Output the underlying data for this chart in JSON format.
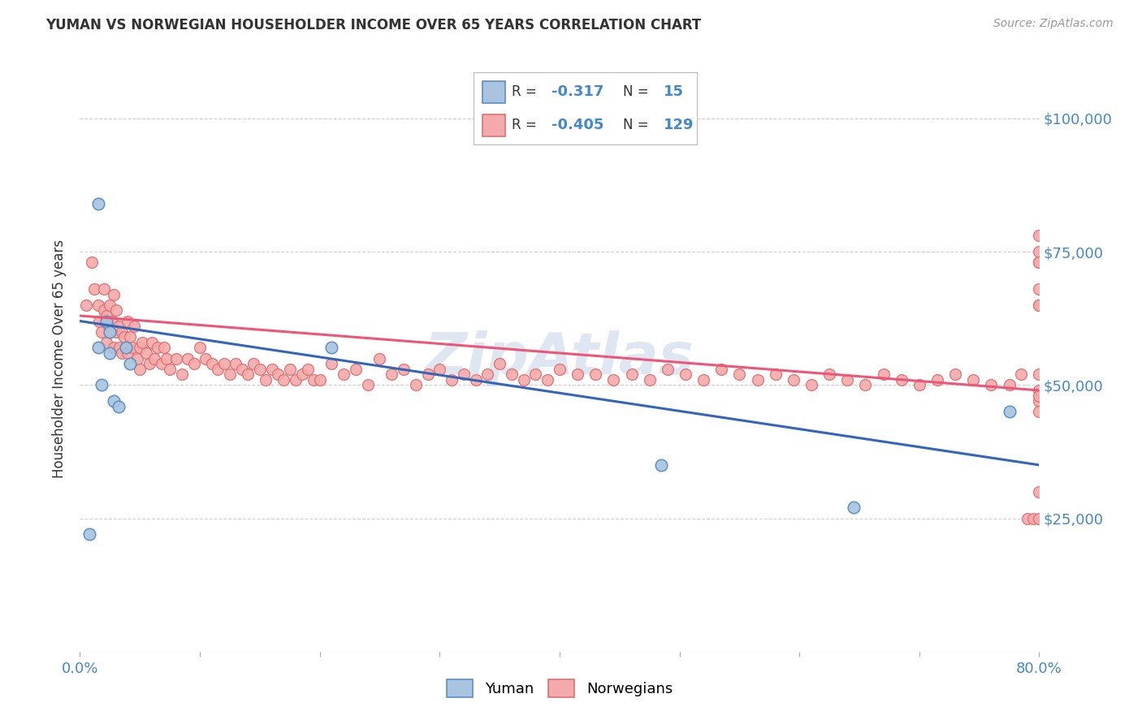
{
  "title": "YUMAN VS NORWEGIAN HOUSEHOLDER INCOME OVER 65 YEARS CORRELATION CHART",
  "source": "Source: ZipAtlas.com",
  "ylabel": "Householder Income Over 65 years",
  "yuman_R": -0.317,
  "yuman_N": 15,
  "norw_R": -0.405,
  "norw_N": 129,
  "xmin": 0.0,
  "xmax": 0.8,
  "ymin": 0,
  "ymax": 110000,
  "ytick_labels": [
    "$25,000",
    "$50,000",
    "$75,000",
    "$100,000"
  ],
  "ytick_values": [
    25000,
    50000,
    75000,
    100000
  ],
  "yuman_color": "#A8C4E0",
  "yuman_edge_color": "#5B8EC4",
  "norw_color": "#F4AAAA",
  "norw_edge_color": "#E07070",
  "yuman_line_color": "#3366BB",
  "norw_line_color": "#EE5577",
  "grid_color": "#CCCCCC",
  "axis_color": "#AAAAAA",
  "label_color": "#4488CC",
  "title_color": "#333333",
  "source_color": "#999999",
  "background_color": "#FFFFFF",
  "watermark_text": "ZipAtlas",
  "watermark_color": "#C8D8E8",
  "yuman_x": [
    0.008,
    0.015,
    0.015,
    0.018,
    0.022,
    0.025,
    0.025,
    0.028,
    0.032,
    0.038,
    0.042,
    0.21,
    0.485,
    0.645,
    0.775
  ],
  "yuman_y": [
    22000,
    84000,
    57000,
    50000,
    62000,
    60000,
    56000,
    47000,
    46000,
    57000,
    54000,
    57000,
    35000,
    27000,
    45000
  ],
  "norw_x": [
    0.005,
    0.01,
    0.012,
    0.015,
    0.016,
    0.018,
    0.02,
    0.02,
    0.022,
    0.022,
    0.024,
    0.025,
    0.025,
    0.027,
    0.028,
    0.028,
    0.03,
    0.03,
    0.032,
    0.033,
    0.035,
    0.035,
    0.037,
    0.038,
    0.04,
    0.04,
    0.042,
    0.044,
    0.045,
    0.048,
    0.05,
    0.05,
    0.052,
    0.055,
    0.058,
    0.06,
    0.062,
    0.065,
    0.068,
    0.07,
    0.072,
    0.075,
    0.08,
    0.085,
    0.09,
    0.095,
    0.1,
    0.105,
    0.11,
    0.115,
    0.12,
    0.125,
    0.13,
    0.135,
    0.14,
    0.145,
    0.15,
    0.155,
    0.16,
    0.165,
    0.17,
    0.175,
    0.18,
    0.185,
    0.19,
    0.195,
    0.2,
    0.21,
    0.22,
    0.23,
    0.24,
    0.25,
    0.26,
    0.27,
    0.28,
    0.29,
    0.3,
    0.31,
    0.32,
    0.33,
    0.34,
    0.35,
    0.36,
    0.37,
    0.38,
    0.39,
    0.4,
    0.415,
    0.43,
    0.445,
    0.46,
    0.475,
    0.49,
    0.505,
    0.52,
    0.535,
    0.55,
    0.565,
    0.58,
    0.595,
    0.61,
    0.625,
    0.64,
    0.655,
    0.67,
    0.685,
    0.7,
    0.715,
    0.73,
    0.745,
    0.76,
    0.775,
    0.785,
    0.79,
    0.795,
    0.8,
    0.8,
    0.8,
    0.8,
    0.8,
    0.8,
    0.8,
    0.8,
    0.8,
    0.8,
    0.8,
    0.8,
    0.8,
    0.8
  ],
  "norw_y": [
    65000,
    73000,
    68000,
    65000,
    62000,
    60000,
    68000,
    64000,
    63000,
    58000,
    61000,
    65000,
    60000,
    62000,
    67000,
    57000,
    64000,
    60000,
    61000,
    57000,
    60000,
    56000,
    59000,
    57000,
    62000,
    56000,
    59000,
    57000,
    61000,
    55000,
    57000,
    53000,
    58000,
    56000,
    54000,
    58000,
    55000,
    57000,
    54000,
    57000,
    55000,
    53000,
    55000,
    52000,
    55000,
    54000,
    57000,
    55000,
    54000,
    53000,
    54000,
    52000,
    54000,
    53000,
    52000,
    54000,
    53000,
    51000,
    53000,
    52000,
    51000,
    53000,
    51000,
    52000,
    53000,
    51000,
    51000,
    54000,
    52000,
    53000,
    50000,
    55000,
    52000,
    53000,
    50000,
    52000,
    53000,
    51000,
    52000,
    51000,
    52000,
    54000,
    52000,
    51000,
    52000,
    51000,
    53000,
    52000,
    52000,
    51000,
    52000,
    51000,
    53000,
    52000,
    51000,
    53000,
    52000,
    51000,
    52000,
    51000,
    50000,
    52000,
    51000,
    50000,
    52000,
    51000,
    50000,
    51000,
    52000,
    51000,
    50000,
    50000,
    52000,
    25000,
    25000,
    49000,
    25000,
    30000,
    65000,
    47000,
    68000,
    73000,
    75000,
    78000,
    73000,
    65000,
    52000,
    48000,
    45000
  ]
}
